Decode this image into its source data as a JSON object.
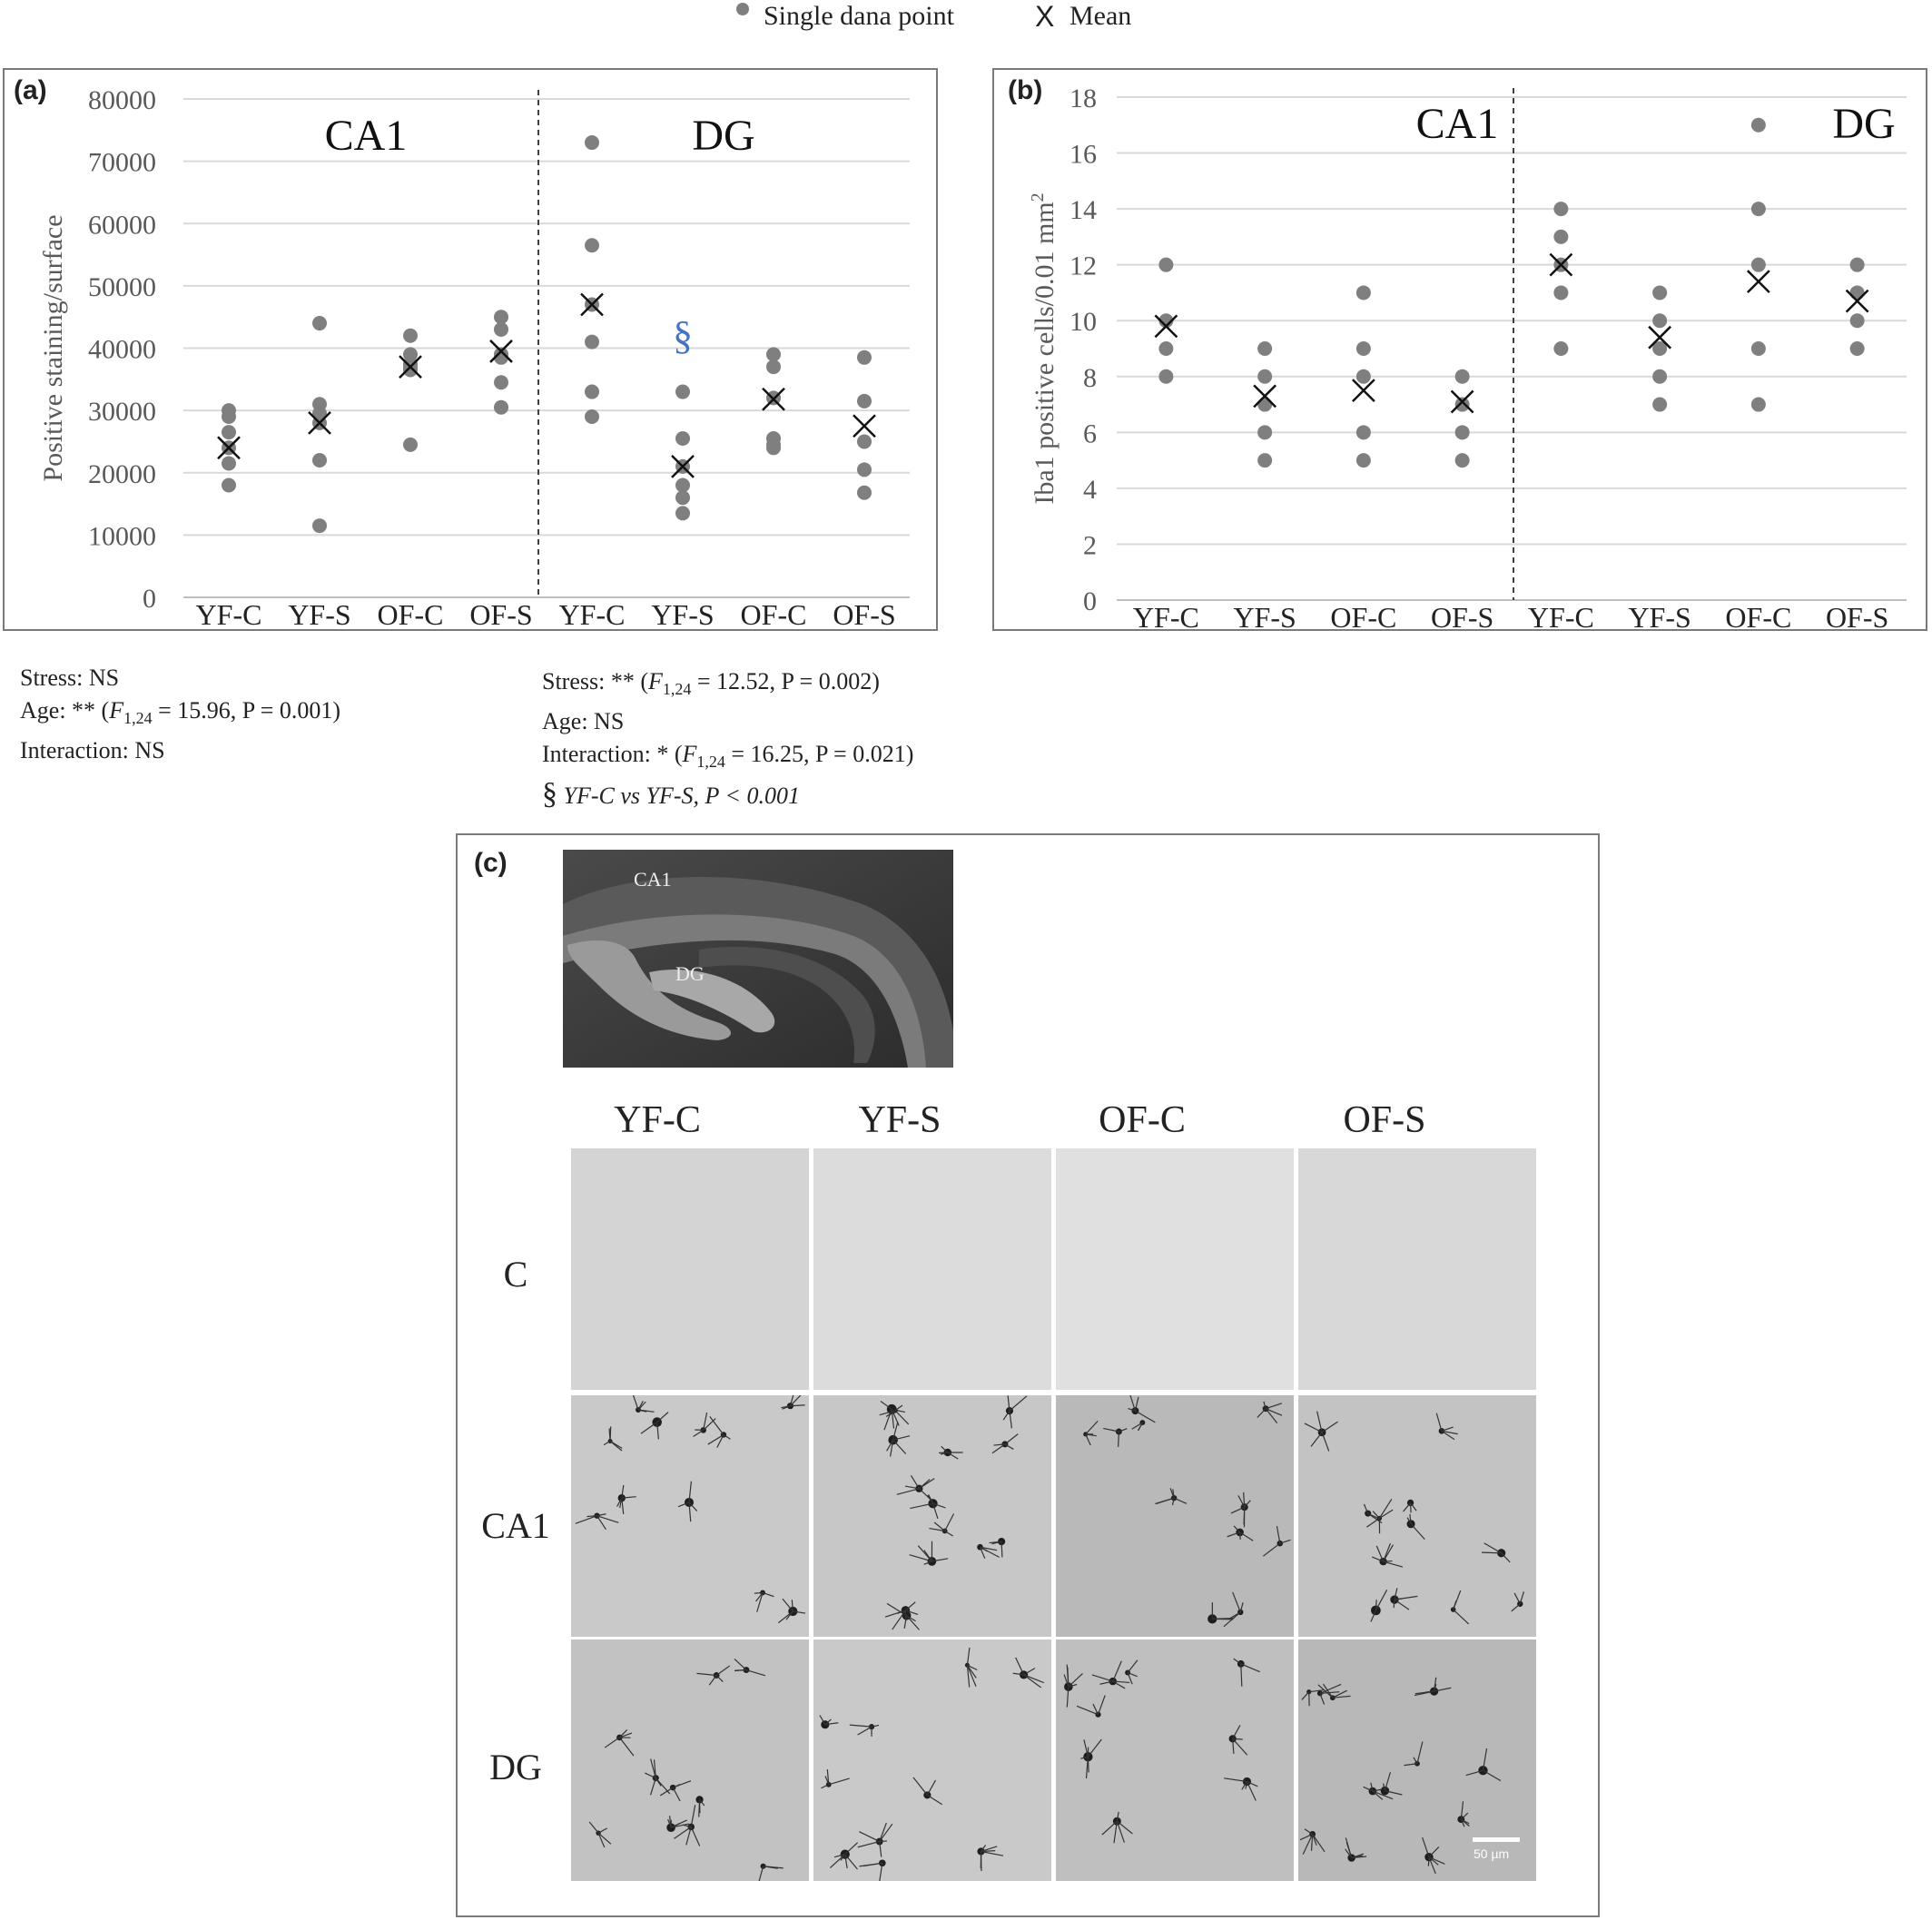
{
  "legend": {
    "point_label": "Single dana point",
    "mean_label": "Mean",
    "mean_glyph": "X"
  },
  "panel_a": {
    "label": "(a)",
    "ylabel": "Positive staining/surface",
    "section_left": "CA1",
    "section_right": "DG",
    "stats": {
      "line1": "Stress: NS",
      "line2_pre": "Age: ** (",
      "line2_F": "F",
      "line2_sub": "1,24",
      "line2_post": " = 15.96, P = 0.001)",
      "line3": "Interaction: NS"
    }
  },
  "panel_b": {
    "label": "(b)",
    "ylabel": "Iba1 positive cells/0.01 mm",
    "ylabel_sup": "2",
    "section_left": "CA1",
    "section_right": "DG",
    "stats": {
      "line1_pre": "Stress: ** (",
      "line1_F": "F",
      "line1_sub": "1,24",
      "line1_post": " = 12.52, P = 0.002)",
      "line2": "Age: NS",
      "line3_pre": "Interaction: * (",
      "line3_F": "F",
      "line3_sub": "1,24",
      "line3_post": " = 16.25, P = 0.021)",
      "line4_symbol": "§",
      "line4_text": "YF-C vs YF-S, P < 0.001"
    }
  },
  "panel_c": {
    "label": "(c)",
    "anatomy_labels": {
      "ca1": "CA1",
      "dg": "DG"
    },
    "columns": [
      "YF-C",
      "YF-S",
      "OF-C",
      "OF-S"
    ],
    "rows": [
      "C",
      "CA1",
      "DG"
    ],
    "scale_bar": "50 µm"
  },
  "chart_data": [
    {
      "type": "scatter",
      "title": "",
      "xlabel": "",
      "ylabel": "Positive staining/surface",
      "categories": [
        "YF-C",
        "YF-S",
        "OF-C",
        "OF-S",
        "YF-C",
        "YF-S",
        "OF-C",
        "OF-S"
      ],
      "ylim": [
        0,
        80000
      ],
      "yticks": [
        0,
        10000,
        20000,
        30000,
        40000,
        50000,
        60000,
        70000,
        80000
      ],
      "grid": true,
      "annotations": [
        {
          "text": "CA1",
          "group": "left"
        },
        {
          "text": "DG",
          "group": "right"
        },
        {
          "text": "§",
          "category_index": 5,
          "y": 42000,
          "color": "#4472c4"
        }
      ],
      "series": [
        {
          "name": "Single dana point",
          "points": [
            [
              [
                30000,
                29000,
                26500,
                24000,
                21500,
                18000
              ]
            ],
            [
              [
                44000,
                31000,
                29500,
                28000,
                22000,
                11500
              ]
            ],
            [
              [
                42000,
                39000,
                37500,
                37000,
                36500,
                24500
              ]
            ],
            [
              [
                45000,
                43000,
                39000,
                38500,
                34500,
                30500
              ]
            ],
            [
              [
                73000,
                56500,
                47000,
                41000,
                33000,
                29000
              ]
            ],
            [
              [
                33000,
                25500,
                21000,
                18000,
                16000,
                13500
              ]
            ],
            [
              [
                39000,
                37000,
                32000,
                25500,
                24500,
                24000
              ]
            ],
            [
              [
                38500,
                31500,
                25000,
                20500,
                16800
              ]
            ]
          ]
        },
        {
          "name": "Mean",
          "values": [
            24000,
            28000,
            37000,
            39500,
            47000,
            21000,
            31800,
            27500
          ]
        }
      ]
    },
    {
      "type": "scatter",
      "title": "",
      "xlabel": "",
      "ylabel": "Iba1 positive cells/0.01 mm2",
      "categories": [
        "YF-C",
        "YF-S",
        "OF-C",
        "OF-S",
        "YF-C",
        "YF-S",
        "OF-C",
        "OF-S"
      ],
      "ylim": [
        0,
        18
      ],
      "yticks": [
        0,
        2,
        4,
        6,
        8,
        10,
        12,
        14,
        16,
        18
      ],
      "grid": true,
      "annotations": [
        {
          "text": "CA1",
          "group": "left"
        },
        {
          "text": "DG",
          "group": "right"
        }
      ],
      "series": [
        {
          "name": "Single dana point",
          "points": [
            [
              [
                12,
                10,
                9,
                8
              ]
            ],
            [
              [
                9,
                8,
                7,
                6,
                5
              ]
            ],
            [
              [
                11,
                9,
                8,
                6,
                5
              ]
            ],
            [
              [
                8,
                7,
                6,
                5
              ]
            ],
            [
              [
                14,
                13,
                12,
                11,
                9
              ]
            ],
            [
              [
                11,
                10,
                9,
                8,
                7
              ]
            ],
            [
              [
                17,
                14,
                12,
                9,
                7
              ]
            ],
            [
              [
                12,
                11,
                10,
                9
              ]
            ]
          ]
        },
        {
          "name": "Mean",
          "values": [
            9.8,
            7.3,
            7.5,
            7.1,
            12,
            9.4,
            11.4,
            10.7
          ]
        }
      ]
    }
  ]
}
